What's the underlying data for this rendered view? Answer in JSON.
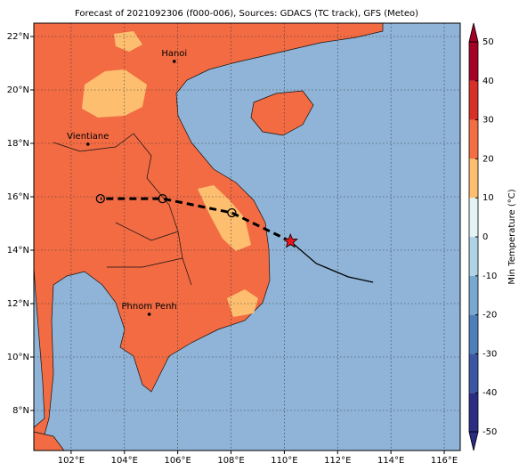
{
  "map": {
    "title": "Forecast of 2021092306 (f000-006), Sources: GDACS (TC track), GFS (Meteo)",
    "xlim": [
      100.6,
      116.6
    ],
    "ylim": [
      6.5,
      22.5
    ],
    "xticks": [
      {
        "value": 102,
        "label": "102°E"
      },
      {
        "value": 104,
        "label": "104°E"
      },
      {
        "value": 106,
        "label": "106°E"
      },
      {
        "value": 108,
        "label": "108°E"
      },
      {
        "value": 110,
        "label": "110°E"
      },
      {
        "value": 112,
        "label": "112°E"
      },
      {
        "value": 114,
        "label": "114°E"
      },
      {
        "value": 116,
        "label": "116°E"
      }
    ],
    "yticks": [
      {
        "value": 8,
        "label": "8°N"
      },
      {
        "value": 10,
        "label": "10°N"
      },
      {
        "value": 12,
        "label": "12°N"
      },
      {
        "value": 14,
        "label": "14°N"
      },
      {
        "value": 16,
        "label": "16°N"
      },
      {
        "value": 18,
        "label": "18°N"
      },
      {
        "value": 20,
        "label": "20°N"
      },
      {
        "value": 22,
        "label": "22°N"
      }
    ],
    "grid": true,
    "cities": [
      {
        "name": "Hanoi",
        "lon": 105.87,
        "lat": 21.07
      },
      {
        "name": "Vientiane",
        "lon": 102.63,
        "lat": 17.97
      },
      {
        "name": "Phnom Penh",
        "lon": 104.93,
        "lat": 11.6
      }
    ],
    "forecast_track": {
      "lon": [
        110.23,
        108.03,
        105.43,
        103.1
      ],
      "lat": [
        14.33,
        15.4,
        15.93,
        15.93
      ]
    },
    "past_track": {
      "lon": [
        110.23,
        111.2,
        112.4,
        113.33
      ],
      "lat": [
        14.33,
        13.5,
        13.0,
        12.8
      ]
    },
    "colorbar": {
      "label": "Min Temperature (°C)",
      "ticks": [
        -50,
        -40,
        -30,
        -20,
        -10,
        0,
        10,
        20,
        30,
        40,
        50
      ],
      "colors": [
        "#2b2c84",
        "#3b57a3",
        "#4f7fb8",
        "#78a9cf",
        "#aed3e6",
        "#e4f3f4",
        "#fdbf6f",
        "#f46d43",
        "#d73027",
        "#a50026"
      ]
    }
  }
}
